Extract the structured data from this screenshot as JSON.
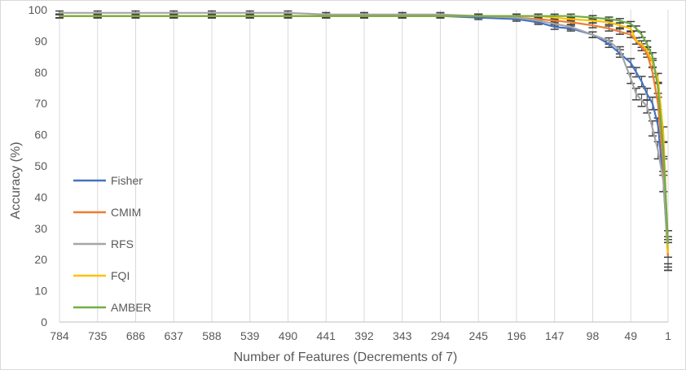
{
  "chart_data": {
    "type": "line",
    "xlabel": "Number of Features (Decrements of 7)",
    "ylabel": "Accuracy (%)",
    "ylim": [
      0,
      100
    ],
    "y_ticks": [
      0,
      10,
      20,
      30,
      40,
      50,
      60,
      70,
      80,
      90,
      100
    ],
    "x_tick_labels": [
      "784",
      "735",
      "686",
      "637",
      "588",
      "539",
      "490",
      "441",
      "392",
      "343",
      "294",
      "245",
      "196",
      "147",
      "98",
      "49",
      "1"
    ],
    "x_reversed": true,
    "error_bars": true,
    "grid": "vertical",
    "legend_position": "left",
    "x": [
      784,
      735,
      686,
      637,
      588,
      539,
      490,
      441,
      392,
      343,
      294,
      245,
      196,
      168,
      147,
      126,
      98,
      77,
      63,
      49,
      42,
      35,
      28,
      21,
      14,
      7,
      1
    ],
    "series": [
      {
        "name": "Fisher",
        "color": "#4472C4",
        "values": [
          98,
          98,
          98,
          98,
          98,
          98,
          98,
          98,
          98,
          98,
          98,
          97.5,
          97,
          96,
          94.5,
          94,
          92,
          89,
          86,
          83,
          80,
          77,
          73,
          70,
          63,
          45,
          21
        ]
      },
      {
        "name": "CMIM",
        "color": "#ED7D31",
        "values": [
          98,
          98,
          98,
          98,
          98,
          98,
          98,
          98,
          98,
          98,
          98,
          98,
          97.5,
          97,
          96.5,
          96,
          95,
          94,
          93,
          92,
          90,
          88,
          86,
          80,
          70,
          50,
          21
        ]
      },
      {
        "name": "RFS",
        "color": "#A5A5A5",
        "values": [
          99,
          99,
          99,
          99,
          99,
          99,
          99,
          98.5,
          98.5,
          98.5,
          98.5,
          98,
          97.5,
          96.5,
          95.5,
          94.5,
          92,
          90,
          87,
          78,
          73,
          71,
          69,
          62,
          55,
          45,
          23
        ]
      },
      {
        "name": "FQI",
        "color": "#FFC000",
        "values": [
          98,
          98,
          98,
          98,
          98,
          98,
          98,
          98,
          98,
          98,
          98,
          98,
          98,
          98,
          97.5,
          97,
          96.5,
          96,
          95,
          94,
          90,
          89,
          87,
          83,
          78,
          60,
          22
        ]
      },
      {
        "name": "AMBER",
        "color": "#70AD47",
        "values": [
          98,
          98,
          98,
          98,
          98,
          98,
          98,
          98,
          98,
          98,
          98,
          98,
          98,
          98,
          98,
          98,
          97.5,
          97,
          96.5,
          95.5,
          94,
          92,
          89,
          85,
          75,
          55,
          25
        ]
      }
    ]
  }
}
